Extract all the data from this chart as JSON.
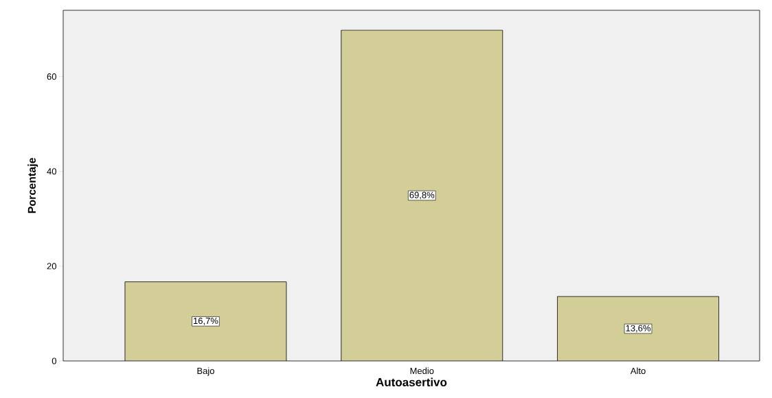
{
  "chart_data": {
    "type": "bar",
    "xlabel": "Autoasertivo",
    "ylabel": "Porcentaje",
    "categories": [
      "Bajo",
      "Medio",
      "Alto"
    ],
    "values": [
      16.7,
      69.8,
      13.6
    ],
    "value_labels": [
      "16,7%",
      "69,8%",
      "13,6%"
    ],
    "color": "#d3ce97",
    "ylim": [
      0,
      74
    ],
    "yticks": [
      0,
      20,
      40,
      60
    ],
    "grid": false
  }
}
